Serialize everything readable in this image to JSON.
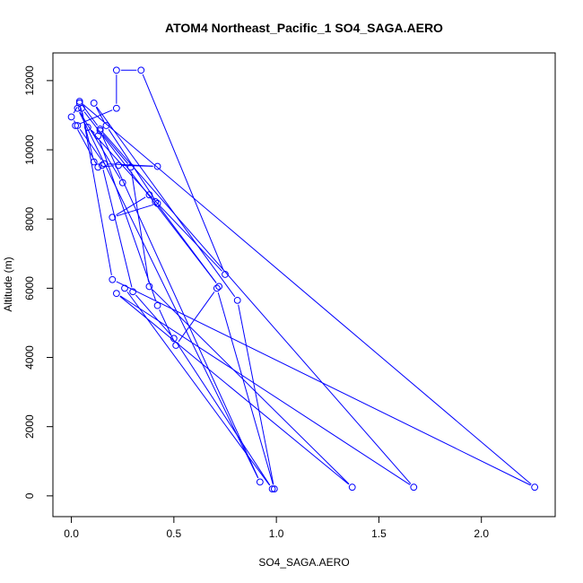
{
  "chart_data": {
    "type": "line",
    "title": "ATOM4 Northeast_Pacific_1 SO4_SAGA.AERO",
    "xlabel": "SO4_SAGA.AERO",
    "ylabel": "Altitude (m)",
    "xlim": [
      -0.09,
      2.36
    ],
    "ylim": [
      -600,
      12800
    ],
    "xticks": [
      0.0,
      0.5,
      1.0,
      1.5,
      2.0
    ],
    "yticks": [
      0,
      2000,
      4000,
      6000,
      8000,
      10000,
      12000
    ],
    "xtick_labels": [
      "0.0",
      "0.5",
      "1.0",
      "1.5",
      "2.0"
    ],
    "ytick_labels": [
      "0",
      "2000",
      "4000",
      "6000",
      "8000",
      "10000",
      "12000"
    ],
    "grid": false,
    "legend": "none",
    "color": "#0000ff",
    "marker": "open-circle",
    "series": [
      {
        "x": [
          0.26,
          0.98,
          0.5,
          0.3,
          0.15,
          0.11,
          0.04,
          0.0,
          0.03,
          0.16,
          0.42,
          0.23,
          0.13,
          0.02,
          0.22,
          0.22,
          0.34,
          0.75,
          0.38,
          0.2,
          0.42,
          0.17,
          0.11,
          0.81,
          0.99,
          0.71,
          0.51,
          0.42,
          0.13,
          0.08,
          0.41,
          0.72,
          0.05,
          0.2,
          2.26,
          0.04,
          0.14,
          1.67,
          0.22,
          1.37,
          0.38,
          0.29,
          0.14,
          0.92,
          0.03,
          0.25
        ],
        "y": [
          6000,
          200,
          4550,
          5900,
          9550,
          9650,
          11350,
          10950,
          10700,
          9600,
          9520,
          9550,
          9500,
          10700,
          11200,
          12300,
          12300,
          6400,
          8700,
          8050,
          8450,
          10700,
          11350,
          5650,
          200,
          6000,
          4350,
          5500,
          10400,
          10650,
          8500,
          6050,
          11200,
          6250,
          250,
          11400,
          10600,
          250,
          5850,
          250,
          6050,
          9500,
          10550,
          400,
          11200,
          9050
        ]
      }
    ]
  }
}
